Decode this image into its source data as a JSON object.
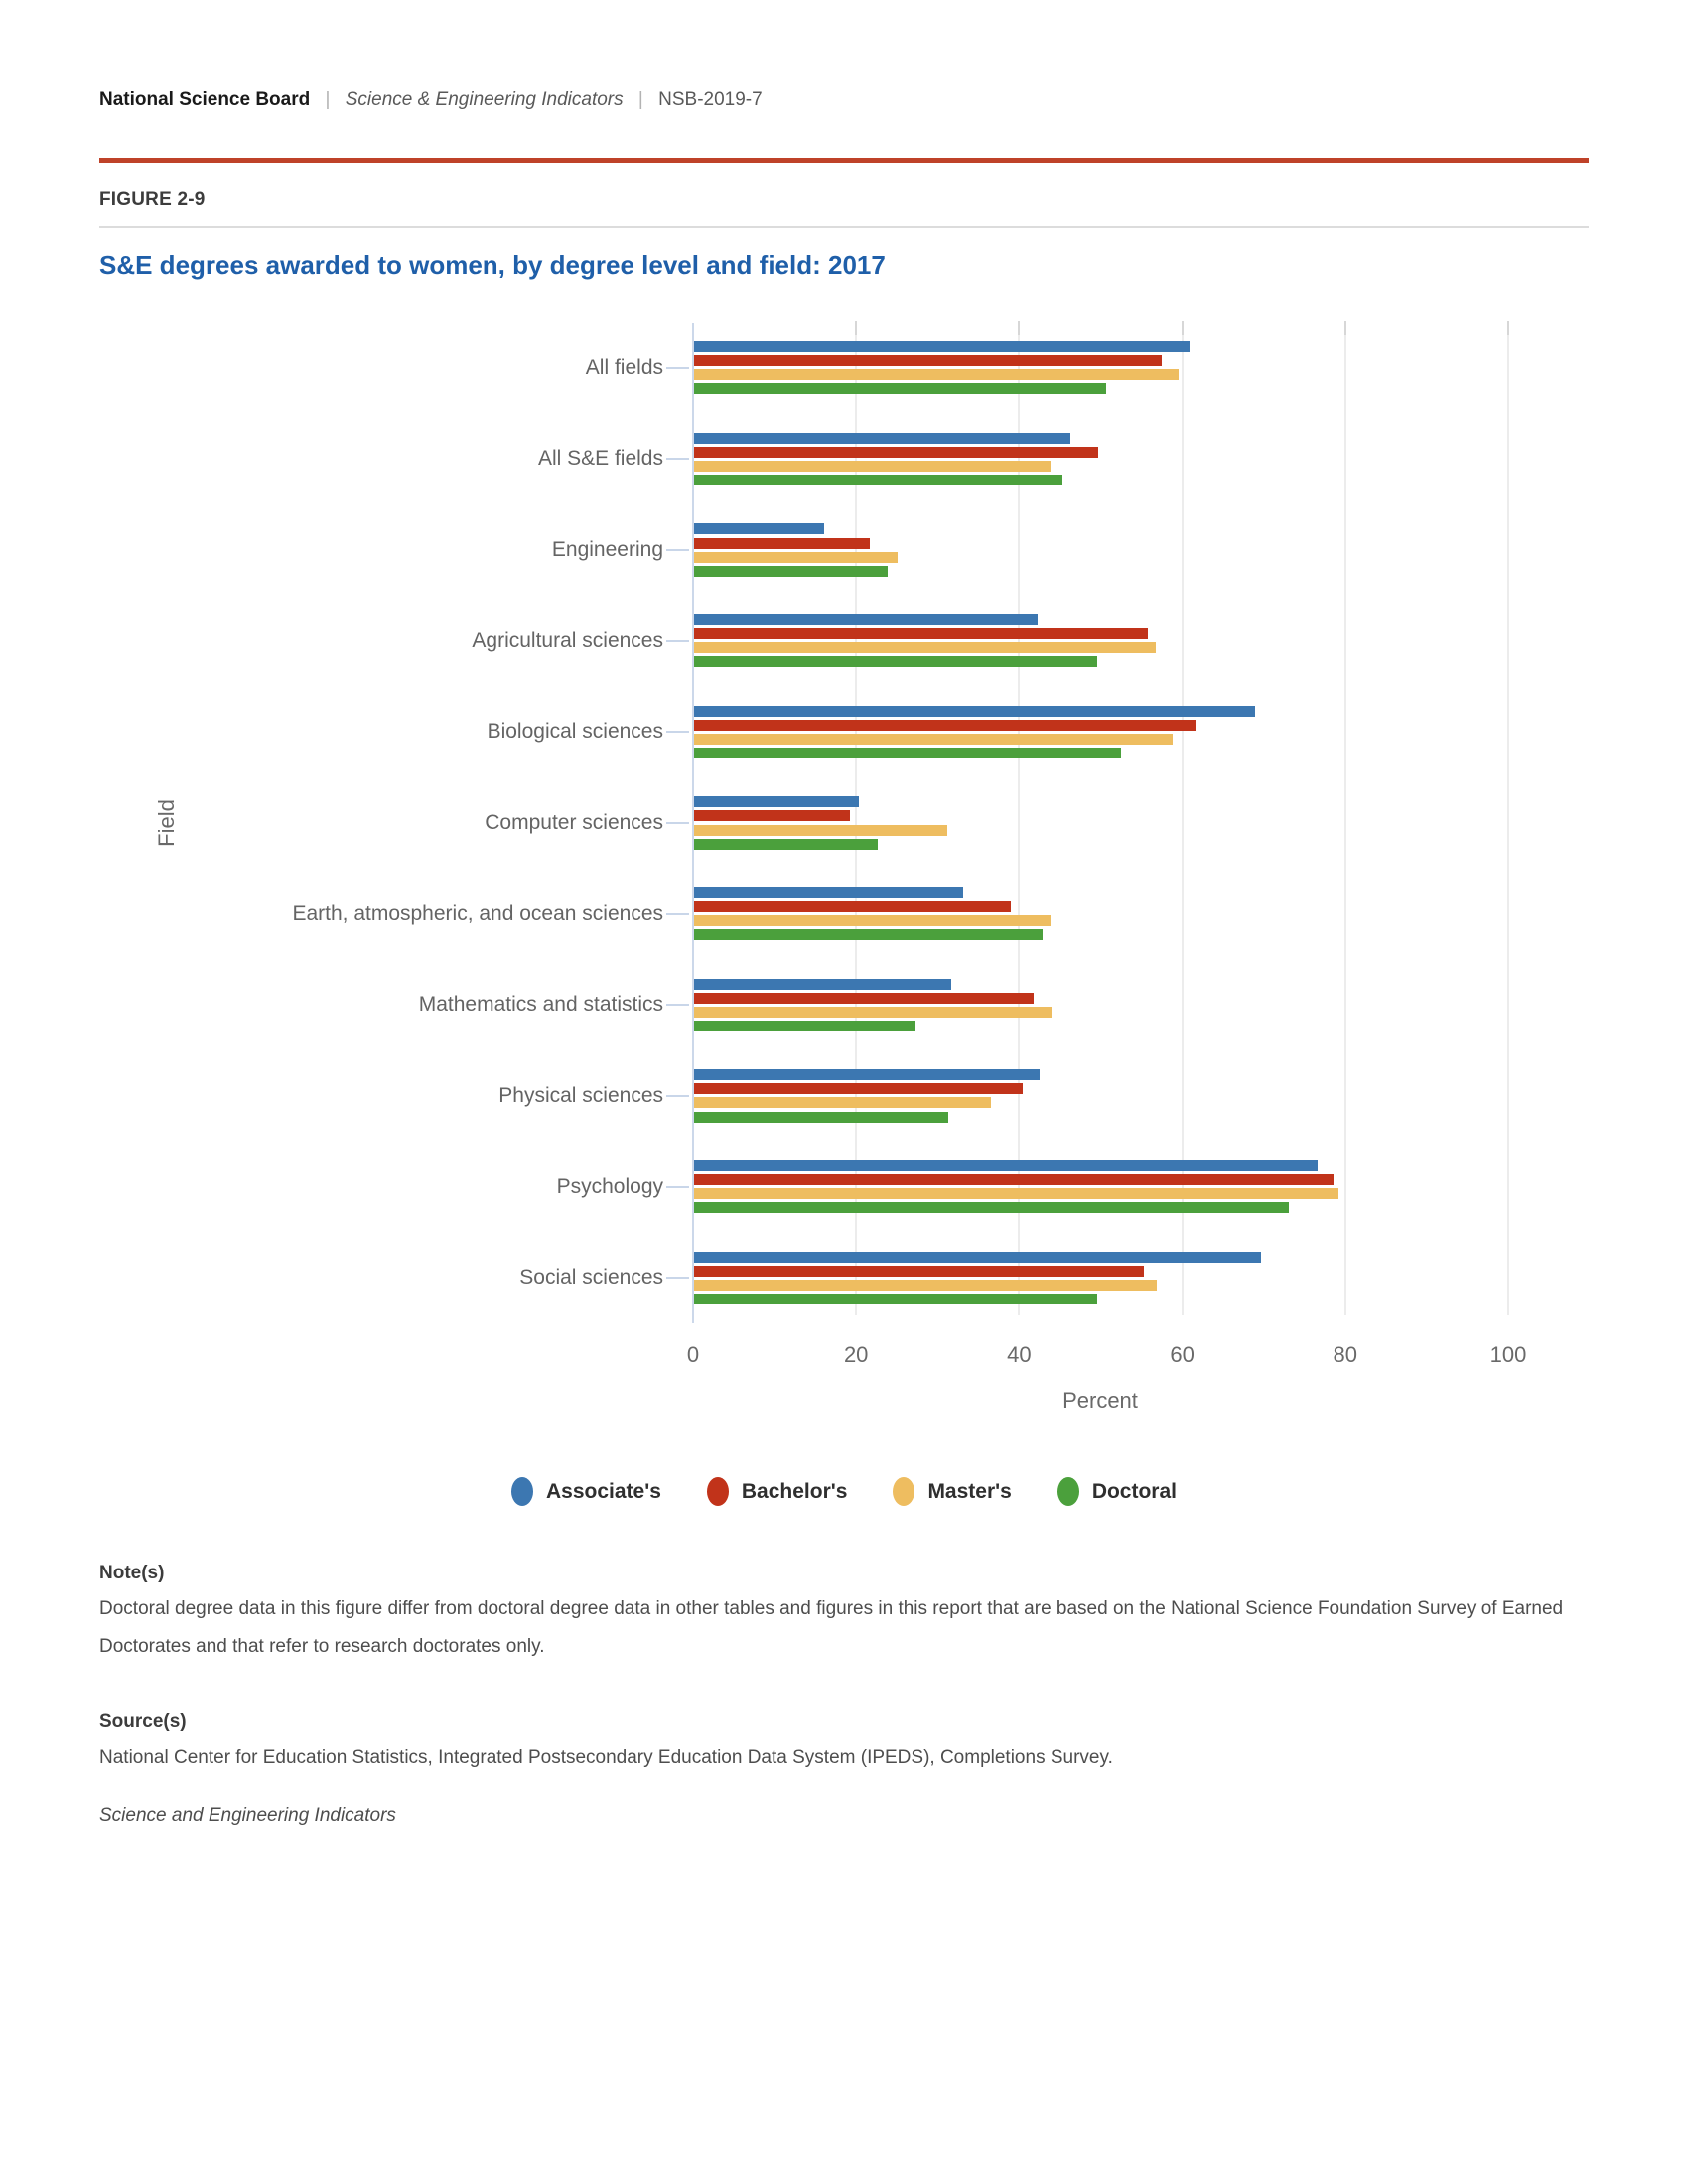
{
  "header": {
    "brand": "National Science Board",
    "separator": "|",
    "publication": "Science & Engineering Indicators",
    "report_id": "NSB-2019-7"
  },
  "figure": {
    "label": "FIGURE 2-9",
    "title": "S&E degrees awarded to women, by degree level and field: 2017"
  },
  "chart_data": {
    "type": "bar",
    "orientation": "horizontal",
    "title": "S&E degrees awarded to women, by degree level and field: 2017",
    "xlabel": "Percent",
    "ylabel": "Field",
    "xlim": [
      0,
      100
    ],
    "xticks": [
      0,
      20,
      40,
      60,
      80,
      100
    ],
    "grid": true,
    "legend_position": "bottom",
    "categories": [
      "All fields",
      "All S&E fields",
      "Engineering",
      "Agricultural sciences",
      "Biological sciences",
      "Computer sciences",
      "Earth, atmospheric, and ocean sciences",
      "Mathematics and statistics",
      "Physical sciences",
      "Psychology",
      "Social sciences"
    ],
    "series": [
      {
        "name": "Associate's",
        "color": "#3c77b1",
        "values": [
          60.8,
          46.2,
          15.9,
          42.2,
          68.8,
          20.2,
          33.0,
          31.6,
          42.4,
          76.5,
          69.6
        ]
      },
      {
        "name": "Bachelor's",
        "color": "#c1331a",
        "values": [
          57.4,
          49.6,
          21.5,
          55.7,
          61.5,
          19.1,
          38.9,
          41.7,
          40.3,
          78.4,
          55.2
        ]
      },
      {
        "name": "Master's",
        "color": "#eebd60",
        "values": [
          59.4,
          43.7,
          25.0,
          56.6,
          58.7,
          31.1,
          43.7,
          43.9,
          36.4,
          79.0,
          56.7
        ]
      },
      {
        "name": "Doctoral",
        "color": "#4ba03c",
        "values": [
          50.6,
          45.2,
          23.8,
          49.5,
          52.4,
          22.5,
          42.8,
          27.2,
          31.2,
          72.9,
          49.4
        ]
      }
    ]
  },
  "notes": {
    "heading": "Note(s)",
    "body": "Doctoral degree data in this figure differ from doctoral degree data in other tables and figures in this report that are based on the National Science Foundation Survey of Earned Doctorates and that refer to research doctorates only."
  },
  "sources": {
    "heading": "Source(s)",
    "body": "National Center for Education Statistics, Integrated Postsecondary Education Data System (IPEDS), Completions Survey."
  },
  "footer_italic": "Science and Engineering Indicators"
}
